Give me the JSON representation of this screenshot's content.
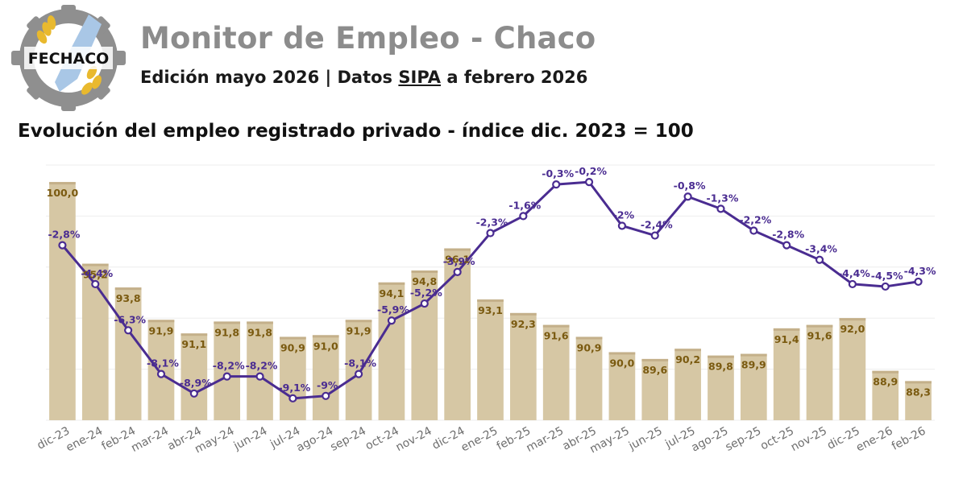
{
  "header": {
    "logo_text": "FECHACO",
    "title": "Monitor de Empleo - Chaco",
    "subtitle_pre": "Edición mayo 2026 | Datos ",
    "subtitle_link": "SIPA",
    "subtitle_post": " a febrero 2026"
  },
  "colors": {
    "bar": "#d6c7a4",
    "bar_top": "#c4b08a",
    "line": "#4a2c91",
    "bar_label": "#7a5a10",
    "line_label": "#4a2c91",
    "logo_gear": "#8f8f8f",
    "logo_wheat": "#e9b92e",
    "logo_blue": "#a9c7e6"
  },
  "chart_data": {
    "type": "bar",
    "title": "Evolución del empleo registrado privado - índice dic. 2023 = 100",
    "categories": [
      "dic-23",
      "ene-24",
      "feb-24",
      "mar-24",
      "abr-24",
      "may-24",
      "jun-24",
      "jul-24",
      "ago-24",
      "sep-24",
      "oct-24",
      "nov-24",
      "dic-24",
      "ene-25",
      "feb-25",
      "mar-25",
      "abr-25",
      "may-25",
      "jun-25",
      "jul-25",
      "ago-25",
      "sep-25",
      "oct-25",
      "nov-25",
      "dic-25",
      "ene-26",
      "feb-26"
    ],
    "series": [
      {
        "type": "bar",
        "values": [
          100.0,
          95.2,
          93.8,
          91.9,
          91.1,
          91.8,
          91.8,
          90.9,
          91.0,
          91.9,
          94.1,
          94.8,
          96.1,
          93.1,
          92.3,
          91.6,
          90.9,
          90.0,
          89.6,
          90.2,
          89.8,
          89.9,
          91.4,
          91.6,
          92.0,
          88.9,
          88.3
        ],
        "labels": [
          "100,0",
          "95,2",
          "93,8",
          "91,9",
          "91,1",
          "91,8",
          "91,8",
          "90,9",
          "91,0",
          "91,9",
          "94,1",
          "94,8",
          "96,1",
          "93,1",
          "92,3",
          "91,6",
          "90,9",
          "90,0",
          "89,6",
          "90,2",
          "89,8",
          "89,9",
          "91,4",
          "91,6",
          "92,0",
          "88,9",
          "88,3"
        ]
      },
      {
        "type": "line",
        "values": [
          -2.8,
          -4.4,
          -6.3,
          -8.1,
          -8.9,
          -8.2,
          -8.2,
          -9.1,
          -9.0,
          -8.1,
          -5.9,
          -5.2,
          -3.9,
          -2.3,
          -1.6,
          -0.3,
          -0.2,
          -2.0,
          -2.4,
          -0.8,
          -1.3,
          -2.2,
          -2.8,
          -3.4,
          -4.4,
          -4.5,
          -4.3
        ],
        "labels": [
          "-2,8%",
          "-4,4%",
          "-6,3%",
          "-8,1%",
          "-8,9%",
          "-8,2%",
          "-8,2%",
          "-9,1%",
          "-9%",
          "-8,1%",
          "-5,9%",
          "-5,2%",
          "-3,9%",
          "-2,3%",
          "-1,6%",
          "-0,3%",
          "-0,2%",
          "-2%",
          "-2,4%",
          "-0,8%",
          "-1,3%",
          "-2,2%",
          "-2,8%",
          "-3,4%",
          "-4,4%",
          "-4,5%",
          "-4,3%"
        ]
      }
    ],
    "bar_ylim": [
      86,
      101
    ],
    "line_ylim": [
      -10,
      0.5
    ],
    "grid": true,
    "legend": "none"
  }
}
